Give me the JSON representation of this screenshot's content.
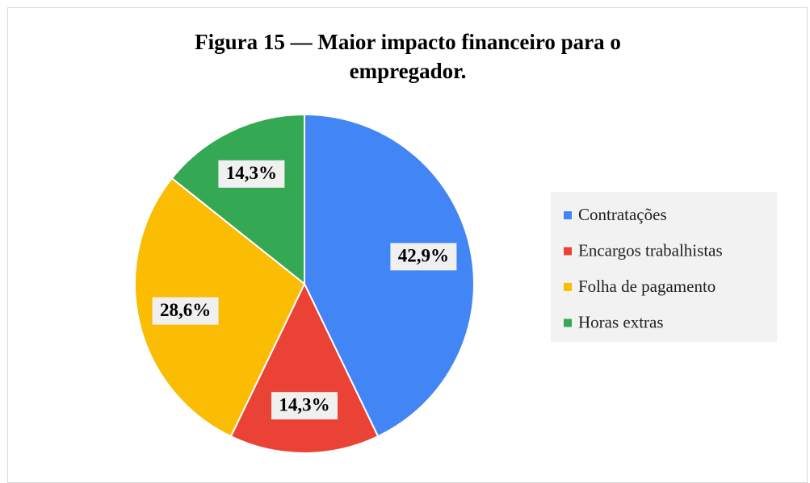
{
  "chart_data": {
    "type": "pie",
    "title": "Figura 15 — Maior impacto financeiro para o empregador.",
    "categories": [
      "Contratações",
      "Encargos trabalhistas",
      "Folha de pagamento",
      "Horas extras"
    ],
    "values": [
      42.9,
      14.3,
      28.6,
      14.3
    ],
    "value_labels": [
      "42,9%",
      "14,3%",
      "28,6%",
      "14,3%"
    ],
    "colors": [
      "#4285f4",
      "#ea4335",
      "#fbbc04",
      "#34a853"
    ],
    "legend": "right"
  }
}
